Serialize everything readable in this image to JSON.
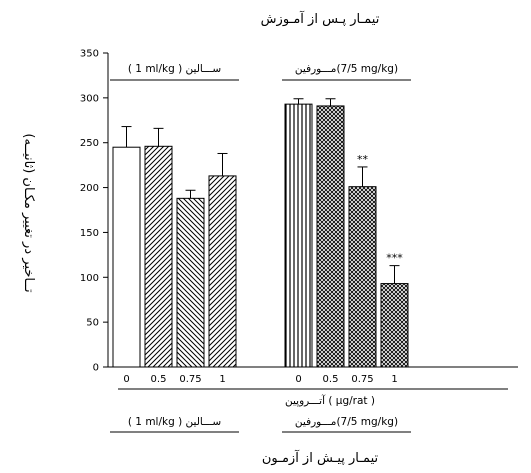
{
  "chart_data": {
    "type": "bar",
    "title": "تیمـار پـس از آمـوزش",
    "xlabel": "تیمـار پیـش از آزمـون",
    "ylabel": "تــاخیر در تغییر مکـان (ثانیــه)",
    "ylim": [
      0,
      350
    ],
    "yticks": [
      0,
      50,
      100,
      150,
      200,
      250,
      300,
      350
    ],
    "dose_unit_label": "آتـــروپین ( µg/rat )",
    "groups": [
      {
        "top_label": "( 1 ml/kg ) ســـالین",
        "bottom_label": "( 1 ml/kg ) ســـالین",
        "categories": [
          "0",
          "0.5",
          "0.75",
          "1"
        ],
        "values": [
          245,
          246,
          188,
          213
        ],
        "errors": [
          23,
          20,
          9,
          25
        ],
        "significance": [
          "",
          "",
          "",
          ""
        ]
      },
      {
        "top_label": "مـــورفین(7/5 mg/kg)",
        "bottom_label": "مـــورفین(7/5 mg/kg)",
        "categories": [
          "0",
          "0.5",
          "0.75",
          "1"
        ],
        "values": [
          293,
          291,
          201,
          93
        ],
        "errors": [
          6,
          8,
          22,
          20
        ],
        "significance": [
          "",
          "",
          "**",
          "***"
        ]
      }
    ],
    "grid": false,
    "legend": "none"
  }
}
